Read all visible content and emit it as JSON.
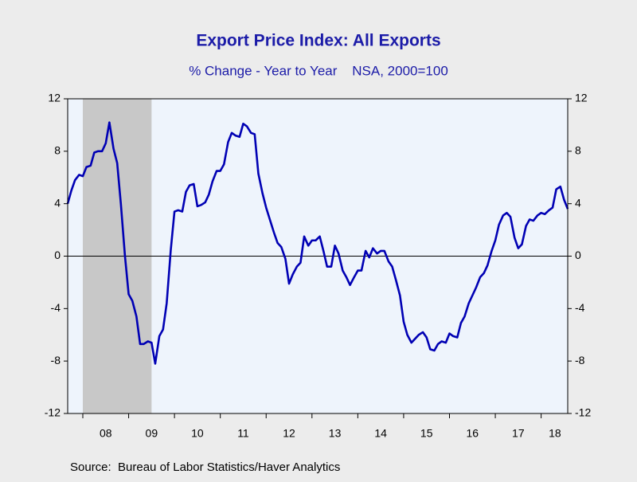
{
  "chart_data": {
    "type": "line",
    "title": "Export Price Index: All Exports",
    "subtitle": "% Change - Year to Year    NSA, 2000=100",
    "source": "Source:  Bureau of Labor Statistics/Haver Analytics",
    "x": [
      2007.67,
      2007.75,
      2007.83,
      2007.92,
      2008.0,
      2008.08,
      2008.17,
      2008.25,
      2008.33,
      2008.42,
      2008.5,
      2008.58,
      2008.67,
      2008.75,
      2008.83,
      2008.92,
      2009.0,
      2009.08,
      2009.17,
      2009.25,
      2009.33,
      2009.42,
      2009.5,
      2009.58,
      2009.67,
      2009.75,
      2009.83,
      2009.92,
      2010.0,
      2010.08,
      2010.17,
      2010.25,
      2010.33,
      2010.42,
      2010.5,
      2010.58,
      2010.67,
      2010.75,
      2010.83,
      2010.92,
      2011.0,
      2011.08,
      2011.17,
      2011.25,
      2011.33,
      2011.42,
      2011.5,
      2011.58,
      2011.67,
      2011.75,
      2011.83,
      2011.92,
      2012.0,
      2012.08,
      2012.17,
      2012.25,
      2012.33,
      2012.42,
      2012.5,
      2012.58,
      2012.67,
      2012.75,
      2012.83,
      2012.92,
      2013.0,
      2013.08,
      2013.17,
      2013.25,
      2013.33,
      2013.42,
      2013.5,
      2013.58,
      2013.67,
      2013.75,
      2013.83,
      2013.92,
      2014.0,
      2014.08,
      2014.17,
      2014.25,
      2014.33,
      2014.42,
      2014.5,
      2014.58,
      2014.67,
      2014.75,
      2014.83,
      2014.92,
      2015.0,
      2015.08,
      2015.17,
      2015.25,
      2015.33,
      2015.42,
      2015.5,
      2015.58,
      2015.67,
      2015.75,
      2015.83,
      2015.92,
      2016.0,
      2016.08,
      2016.17,
      2016.25,
      2016.33,
      2016.42,
      2016.5,
      2016.58,
      2016.67,
      2016.75,
      2016.83,
      2016.92,
      2017.0,
      2017.08,
      2017.17,
      2017.25,
      2017.33,
      2017.42,
      2017.5,
      2017.58,
      2017.67,
      2017.75,
      2017.83,
      2017.92,
      2018.0,
      2018.08,
      2018.17,
      2018.25,
      2018.33,
      2018.42,
      2018.5,
      2018.58
    ],
    "series": [
      {
        "name": "Export Price Index",
        "color": "#0000b4",
        "values": [
          4.0,
          5.0,
          5.8,
          6.2,
          6.1,
          6.8,
          6.9,
          7.9,
          8.0,
          8.0,
          8.6,
          10.2,
          8.2,
          7.1,
          4.0,
          0.0,
          -2.9,
          -3.4,
          -4.6,
          -6.7,
          -6.7,
          -6.5,
          -6.6,
          -8.2,
          -6.1,
          -5.6,
          -3.6,
          0.5,
          3.4,
          3.5,
          3.4,
          4.9,
          5.4,
          5.5,
          3.8,
          3.9,
          4.1,
          4.7,
          5.7,
          6.5,
          6.5,
          7.0,
          8.7,
          9.4,
          9.2,
          9.1,
          10.1,
          9.9,
          9.4,
          9.3,
          6.3,
          4.8,
          3.7,
          2.8,
          1.8,
          1.0,
          0.7,
          -0.2,
          -2.1,
          -1.4,
          -0.8,
          -0.5,
          1.5,
          0.8,
          1.2,
          1.2,
          1.5,
          0.4,
          -0.8,
          -0.8,
          0.8,
          0.2,
          -1.1,
          -1.6,
          -2.2,
          -1.6,
          -1.1,
          -1.1,
          0.4,
          -0.1,
          0.6,
          0.2,
          0.4,
          0.4,
          -0.4,
          -0.8,
          -1.8,
          -3.0,
          -5.0,
          -6.0,
          -6.6,
          -6.3,
          -6.0,
          -5.8,
          -6.2,
          -7.1,
          -7.2,
          -6.7,
          -6.5,
          -6.6,
          -5.9,
          -6.1,
          -6.2,
          -5.1,
          -4.6,
          -3.6,
          -3.0,
          -2.4,
          -1.6,
          -1.3,
          -0.7,
          0.4,
          1.2,
          2.4,
          3.1,
          3.3,
          3.0,
          1.4,
          0.6,
          0.9,
          2.3,
          2.8,
          2.7,
          3.1,
          3.3,
          3.2,
          3.5,
          3.7,
          5.1,
          5.3,
          4.3,
          3.6
        ]
      }
    ],
    "xlim": [
      2007.67,
      2018.58
    ],
    "xticks": [
      {
        "value": 2008.5,
        "label": "08"
      },
      {
        "value": 2009.5,
        "label": "09"
      },
      {
        "value": 2010.5,
        "label": "10"
      },
      {
        "value": 2011.5,
        "label": "11"
      },
      {
        "value": 2012.5,
        "label": "12"
      },
      {
        "value": 2013.5,
        "label": "13"
      },
      {
        "value": 2014.5,
        "label": "14"
      },
      {
        "value": 2015.5,
        "label": "15"
      },
      {
        "value": 2016.5,
        "label": "16"
      },
      {
        "value": 2017.5,
        "label": "17"
      },
      {
        "value": 2018.3,
        "label": "18"
      }
    ],
    "minor_xticks": [
      2008,
      2009,
      2010,
      2011,
      2012,
      2013,
      2014,
      2015,
      2016,
      2017,
      2018
    ],
    "ylim": [
      -12,
      12
    ],
    "yticks": [
      -12,
      -8,
      -4,
      0,
      4,
      8,
      12
    ],
    "y2lim": [
      -12,
      12
    ],
    "y2ticks": [
      -12,
      -8,
      -4,
      0,
      4,
      8,
      12
    ],
    "recession": [
      2008.0,
      2009.5
    ],
    "recession_color": "#c8c8c8",
    "plot_background": "#eef4fc",
    "zero_line": true
  }
}
